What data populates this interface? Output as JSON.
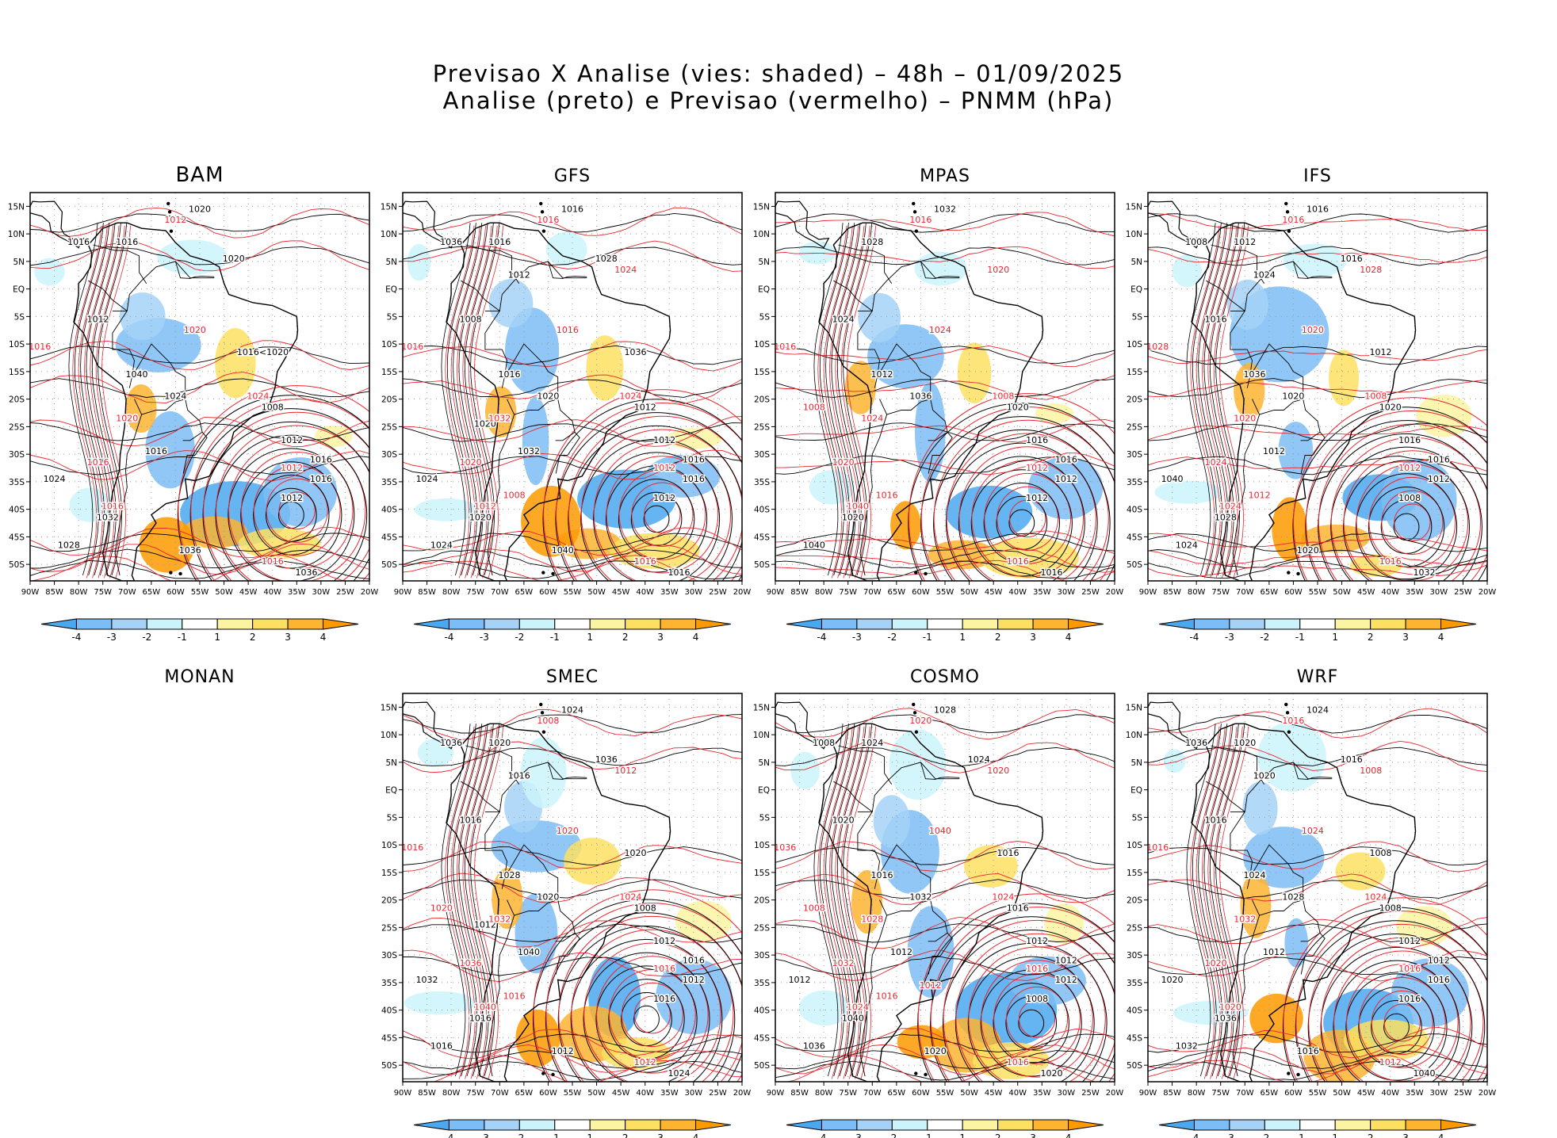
{
  "figure": {
    "title_line1": "Previsao X Analise (vies: shaded) – 48h – 01/09/2025",
    "title_line2": "Analise (preto) e Previsao (vermelho) – PNMM (hPa)"
  },
  "axes": {
    "lat_labels": [
      "15N",
      "10N",
      "5N",
      "EQ",
      "5S",
      "10S",
      "15S",
      "20S",
      "25S",
      "30S",
      "35S",
      "40S",
      "45S",
      "50S"
    ],
    "lat_values": [
      15,
      10,
      5,
      0,
      -5,
      -10,
      -15,
      -20,
      -25,
      -30,
      -35,
      -40,
      -45,
      -50
    ],
    "lon_labels": [
      "90W",
      "85W",
      "80W",
      "75W",
      "70W",
      "65W",
      "60W",
      "55W",
      "50W",
      "45W",
      "40W",
      "35W",
      "30W",
      "25W",
      "20W"
    ],
    "lon_values": [
      -90,
      -85,
      -80,
      -75,
      -70,
      -65,
      -60,
      -55,
      -50,
      -45,
      -40,
      -35,
      -30,
      -25,
      -20
    ],
    "lon_range": [
      -90,
      -20
    ],
    "lat_range": [
      -53,
      17.5
    ]
  },
  "colorbar": {
    "labels": [
      "-4",
      "-3",
      "-2",
      "-1",
      "1",
      "2",
      "3",
      "4"
    ],
    "colors": [
      "#4aa8f0",
      "#7dbdf5",
      "#a6d2f7",
      "#cbf3fb",
      "#ffffff",
      "#fdf4a3",
      "#fde062",
      "#fdb431",
      "#fd9a00"
    ]
  },
  "colors": {
    "analysis_contour": "#000000",
    "forecast_contour": "#e8262e",
    "grid_dots": "#9a9a9a"
  },
  "panels": [
    {
      "name": "BAM",
      "has_map": true,
      "analysis_labels": [
        "1016",
        "1016",
        "1012",
        "1012",
        "1008",
        "1012",
        "1016",
        "1020",
        "1024",
        "1028",
        "1032",
        "1036",
        "1040",
        "1024",
        "1020",
        "1016",
        "1016",
        "1036",
        "1016<1020"
      ],
      "forecast_labels": [
        "1012",
        "1016",
        "1012",
        "1024",
        "1020",
        "1016",
        "1016",
        "1020",
        "1016"
      ]
    },
    {
      "name": "GFS",
      "has_map": true,
      "analysis_labels": [
        "1016",
        "1016",
        "1012",
        "1012",
        "1012",
        "1008",
        "1016",
        "1016",
        "1020",
        "1024",
        "1020",
        "1016",
        "1016",
        "1024",
        "1028",
        "1032",
        "1036",
        "1040",
        "1036",
        "1012",
        "1020"
      ],
      "forecast_labels": [
        "1012",
        "1016",
        "1016",
        "1024",
        "1032",
        "1020",
        "1016",
        "1016",
        "1012",
        "1024",
        "1008"
      ]
    },
    {
      "name": "MPAS",
      "has_map": true,
      "analysis_labels": [
        "1016",
        "1012",
        "1012",
        "1016",
        "1020",
        "1024",
        "1028",
        "1032",
        "1036",
        "1040",
        "1020",
        "1016",
        "1012"
      ],
      "forecast_labels": [
        "1012",
        "1016",
        "1016",
        "1008",
        "1024",
        "1020",
        "1016",
        "1024",
        "1040",
        "1020",
        "1016",
        "1008"
      ]
    },
    {
      "name": "IFS",
      "has_map": true,
      "analysis_labels": [
        "1016",
        "1012",
        "1008",
        "1016",
        "1020",
        "1016",
        "1012",
        "1016",
        "1020",
        "1024",
        "1028",
        "1032",
        "1036",
        "1040",
        "1016",
        "1012",
        "1008",
        "1020",
        "1012",
        "1024"
      ],
      "forecast_labels": [
        "1012",
        "1016",
        "1016",
        "1008",
        "1020",
        "1024",
        "1028",
        "1020",
        "1024",
        "1028",
        "1012"
      ]
    },
    {
      "name": "MONAN",
      "has_map": false,
      "analysis_labels": [],
      "forecast_labels": []
    },
    {
      "name": "SMEC",
      "has_map": true,
      "analysis_labels": [
        "1016",
        "1012",
        "1016",
        "1012",
        "1008",
        "1016",
        "1020",
        "1024",
        "1020",
        "1016",
        "1016",
        "1024",
        "1028",
        "1032",
        "1036",
        "1040",
        "1036",
        "1012",
        "1020",
        "1016",
        "1012"
      ],
      "forecast_labels": [
        "1016",
        "1012",
        "1008",
        "1024",
        "1032",
        "1036",
        "1016",
        "1020",
        "1040",
        "1012",
        "1016",
        "1020"
      ]
    },
    {
      "name": "COSMO",
      "has_map": true,
      "analysis_labels": [
        "1012",
        "1012",
        "1008",
        "1012",
        "1016",
        "1020",
        "1024",
        "1028",
        "1032",
        "1036",
        "1040",
        "1020",
        "1016",
        "1012",
        "1024",
        "1012",
        "1008",
        "1020",
        "1016"
      ],
      "forecast_labels": [
        "1016",
        "1016",
        "1020",
        "1024",
        "1028",
        "1032",
        "1036",
        "1040",
        "1024",
        "1020",
        "1016",
        "1008",
        "1012"
      ]
    },
    {
      "name": "WRF",
      "has_map": true,
      "analysis_labels": [
        "1012",
        "1016",
        "1016",
        "1012",
        "1008",
        "1016",
        "1020",
        "1024",
        "1028",
        "1032",
        "1036",
        "1040",
        "1024",
        "1020",
        "1016",
        "1012",
        "1036",
        "1016",
        "1008",
        "1020"
      ],
      "forecast_labels": [
        "1016",
        "1012",
        "1016",
        "1024",
        "1032",
        "1020",
        "1016",
        "1024",
        "1020",
        "1008"
      ]
    }
  ]
}
